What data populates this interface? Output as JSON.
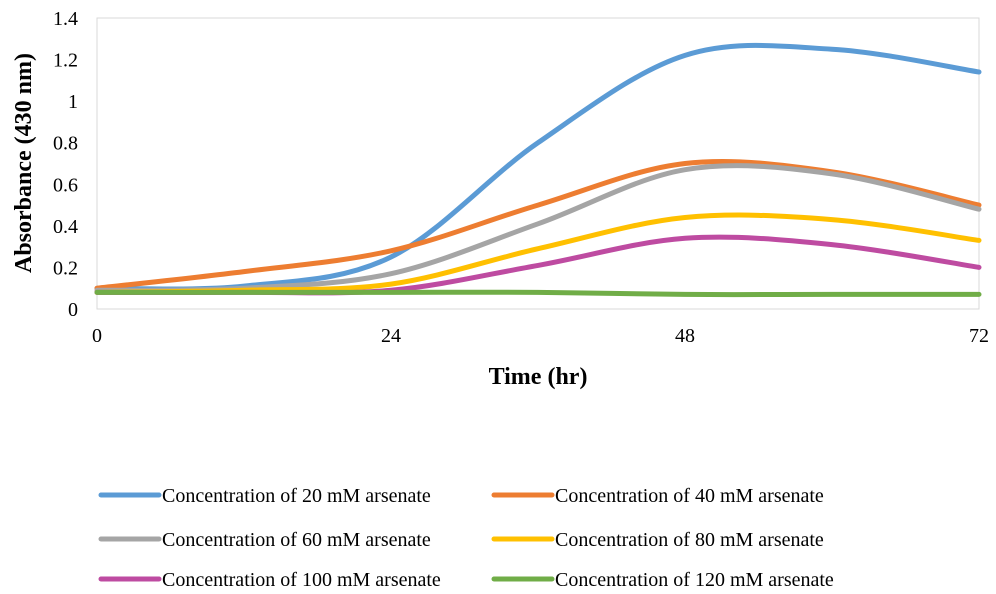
{
  "chart_data": {
    "type": "line",
    "xlabel": "Time (hr)",
    "ylabel": "Absorbance (430 nm)",
    "xlim": [
      0,
      72
    ],
    "ylim": [
      0,
      1.4
    ],
    "xticks": [
      "0",
      "24",
      "48",
      "72"
    ],
    "yticks": [
      "0",
      "0.2",
      "0.4",
      "0.6",
      "0.8",
      "1",
      "1.2",
      "1.4"
    ],
    "grid": false,
    "legend_position": "bottom",
    "x": [
      0,
      12,
      24,
      36,
      48,
      60,
      72
    ],
    "series": [
      {
        "name": "Concentration of 20 mM arsenate",
        "color": "#5B9BD5",
        "values": [
          0.1,
          0.11,
          0.25,
          0.8,
          1.22,
          1.25,
          1.14
        ]
      },
      {
        "name": "Concentration of 40 mM arsenate",
        "color": "#ED7D31",
        "values": [
          0.1,
          0.18,
          0.28,
          0.5,
          0.7,
          0.66,
          0.5
        ]
      },
      {
        "name": "Concentration of 60 mM arsenate",
        "color": "#A5A5A5",
        "values": [
          0.09,
          0.1,
          0.17,
          0.41,
          0.67,
          0.65,
          0.48
        ]
      },
      {
        "name": "Concentration of 80 mM arsenate",
        "color": "#FFC000",
        "values": [
          0.08,
          0.09,
          0.12,
          0.29,
          0.44,
          0.43,
          0.33
        ]
      },
      {
        "name": "Concentration of 100 mM arsenate",
        "color": "#BE4BA1",
        "values": [
          0.08,
          0.08,
          0.09,
          0.21,
          0.34,
          0.31,
          0.2
        ]
      },
      {
        "name": "Concentration of 120 mM arsenate",
        "color": "#70AD47",
        "values": [
          0.08,
          0.08,
          0.08,
          0.08,
          0.07,
          0.07,
          0.07
        ]
      }
    ]
  }
}
